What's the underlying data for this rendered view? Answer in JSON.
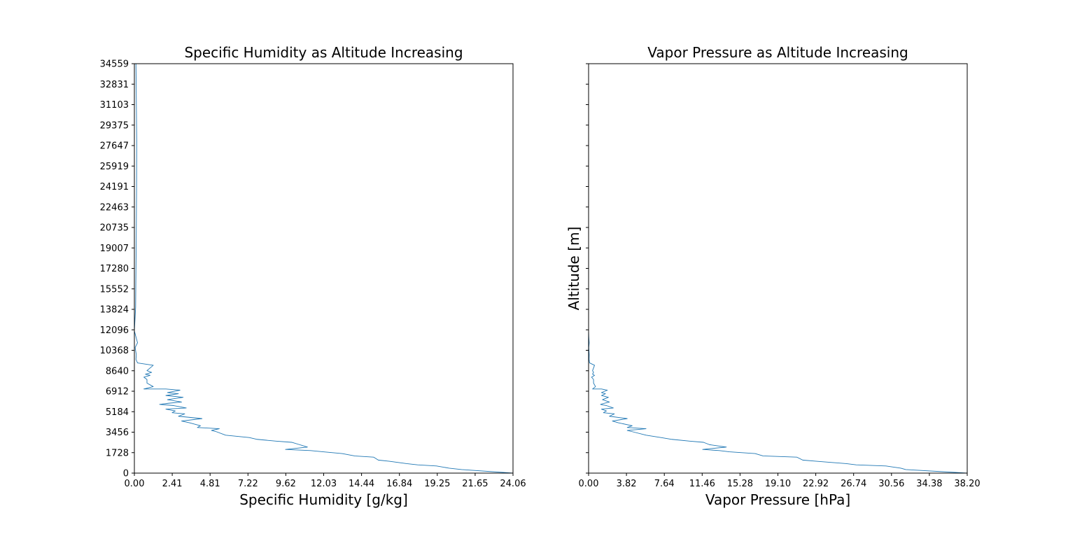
{
  "chart_data": [
    {
      "type": "line",
      "title": "Specific Humidity as Altitude Increasing",
      "xlabel": "Specific Humidity [g/kg]",
      "ylabel": "",
      "xlim": [
        0,
        24.06
      ],
      "ylim": [
        0,
        34559
      ],
      "xticks": [
        "0.00",
        "2.41",
        "4.81",
        "7.22",
        "9.62",
        "12.03",
        "14.44",
        "16.84",
        "19.25",
        "21.65",
        "24.06"
      ],
      "yticks": [
        "0",
        "1728",
        "3456",
        "5184",
        "6912",
        "8640",
        "10368",
        "12096",
        "13824",
        "15552",
        "17280",
        "19007",
        "20735",
        "22463",
        "24191",
        "25919",
        "27647",
        "29375",
        "31103",
        "32831",
        "34559"
      ],
      "show_ytick_labels": true,
      "color": "#1f77b4",
      "series": [
        {
          "x": [
            24.06,
            20.8,
            20.0,
            19.2,
            18.0,
            17.3,
            16.2,
            15.5,
            15.2,
            14.0,
            13.2,
            12.0,
            11.2,
            9.6,
            11.0,
            10.5,
            10.0,
            9.0,
            7.8,
            7.3,
            5.8,
            5.2,
            4.9,
            5.4,
            4.0,
            4.2,
            3.5,
            3.0,
            4.3,
            2.8,
            3.2,
            2.4,
            2.6,
            2.0,
            3.3,
            2.5,
            1.6,
            2.2,
            3.0,
            2.1,
            3.1,
            2.0,
            2.8,
            2.1,
            2.9,
            2.0,
            0.6,
            1.2,
            0.8,
            0.8,
            0.6,
            1.0,
            0.7,
            1.1,
            0.8,
            1.2,
            0.2,
            0.1,
            0.12,
            0.05,
            0.2,
            0.1,
            0.0,
            0.08,
            0.1,
            0.12,
            0.14,
            0.15,
            0.12,
            0.1
          ],
          "y": [
            0,
            300,
            420,
            600,
            700,
            800,
            1000,
            1100,
            1350,
            1450,
            1650,
            1800,
            1900,
            2000,
            2200,
            2400,
            2600,
            2700,
            2850,
            3000,
            3200,
            3500,
            3600,
            3750,
            3850,
            4000,
            4250,
            4400,
            4600,
            4800,
            5000,
            5100,
            5250,
            5400,
            5500,
            5700,
            5800,
            5900,
            6000,
            6200,
            6400,
            6550,
            6700,
            6800,
            7000,
            7100,
            7100,
            7300,
            7600,
            7900,
            8100,
            8250,
            8350,
            8500,
            8650,
            9100,
            9300,
            9600,
            10000,
            10600,
            11000,
            11500,
            12000,
            14000,
            17000,
            20000,
            24000,
            28000,
            32000,
            34559
          ]
        }
      ]
    },
    {
      "type": "line",
      "title": "Vapor Pressure as Altitude Increasing",
      "xlabel": "Vapor Pressure [hPa]",
      "ylabel": "Altitude [m]",
      "xlim": [
        0,
        38.2
      ],
      "ylim": [
        0,
        34559
      ],
      "xticks": [
        "0.00",
        "3.82",
        "7.64",
        "11.46",
        "15.28",
        "19.10",
        "22.92",
        "26.74",
        "30.56",
        "34.38",
        "38.20"
      ],
      "yticks": [
        "0",
        "1728",
        "3456",
        "5184",
        "6912",
        "8640",
        "10368",
        "12096",
        "13824",
        "15552",
        "17280",
        "19007",
        "20735",
        "22463",
        "24191",
        "25919",
        "27647",
        "29375",
        "31103",
        "32831",
        "34559"
      ],
      "show_ytick_labels": false,
      "color": "#1f77b4",
      "series": [
        {
          "x": [
            38.2,
            32.0,
            31.5,
            30.0,
            27.0,
            26.0,
            23.0,
            21.6,
            21.0,
            17.6,
            16.8,
            14.2,
            13.2,
            11.5,
            13.9,
            12.2,
            11.6,
            10.2,
            8.4,
            7.3,
            5.8,
            4.4,
            3.9,
            5.8,
            3.9,
            4.4,
            3.0,
            2.4,
            3.9,
            2.1,
            2.6,
            1.5,
            1.8,
            1.3,
            2.5,
            1.8,
            1.2,
            1.6,
            2.1,
            1.4,
            2.0,
            1.3,
            1.7,
            1.3,
            1.9,
            1.3,
            0.4,
            0.7,
            0.5,
            0.5,
            0.3,
            0.6,
            0.4,
            0.5,
            0.4,
            0.6,
            0.1,
            0.05,
            0.06,
            0.02,
            0.06,
            0.02,
            0.0
          ],
          "y": [
            0,
            300,
            420,
            600,
            700,
            800,
            1000,
            1100,
            1350,
            1450,
            1650,
            1800,
            1900,
            2000,
            2200,
            2400,
            2600,
            2700,
            2850,
            3000,
            3200,
            3500,
            3600,
            3750,
            3850,
            4000,
            4250,
            4400,
            4600,
            4800,
            5000,
            5100,
            5250,
            5400,
            5500,
            5700,
            5800,
            5900,
            6000,
            6200,
            6400,
            6550,
            6700,
            6800,
            7000,
            7100,
            7100,
            7300,
            7600,
            7900,
            8100,
            8250,
            8350,
            8500,
            8650,
            9100,
            9300,
            9600,
            10000,
            10600,
            11000,
            11500,
            12000
          ]
        }
      ]
    }
  ]
}
